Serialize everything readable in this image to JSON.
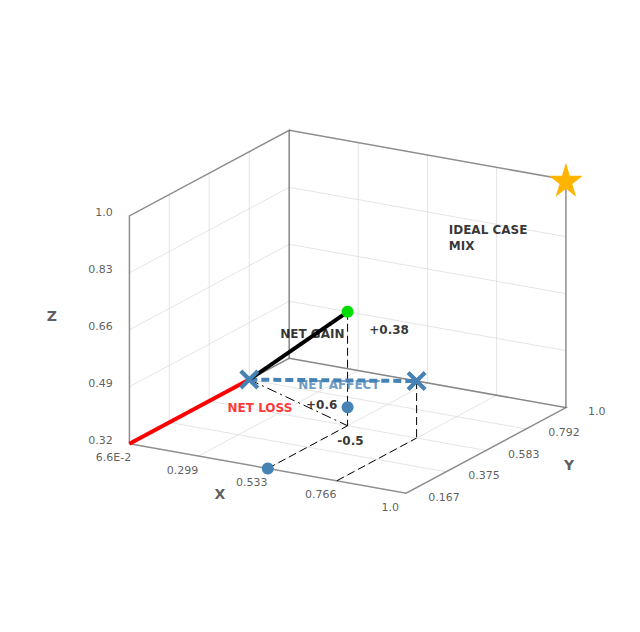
{
  "chart_data": {
    "type": "scatter3d",
    "x_label": "X",
    "y_label": "Y",
    "z_label": "Z",
    "xlim": [
      0.066,
      1.0
    ],
    "ylim": [
      0.167,
      1.0
    ],
    "zlim": [
      0.32,
      1.0
    ],
    "xticks": [
      {
        "value": 0.066,
        "label": "6.6E-2"
      },
      0.299,
      0.533,
      0.766,
      {
        "value": 1.0,
        "label": "1.0"
      }
    ],
    "yticks": [
      0.167,
      0.375,
      0.583,
      0.792,
      {
        "value": 1.0,
        "label": "1.0"
      }
    ],
    "zticks": [
      0.32,
      0.49,
      0.66,
      0.83,
      {
        "value": 1.0,
        "label": "1.0"
      }
    ],
    "grid": true,
    "series": [
      {
        "type": "line",
        "line_style": "dashed",
        "color": "#000000",
        "values": [
          [
            0.533,
            0.583,
            0.66
          ],
          [
            0.533,
            0.583,
            0.32
          ]
        ]
      },
      {
        "type": "line",
        "line_style": "dashed",
        "color": "#000000",
        "values": [
          [
            0.533,
            0.167,
            0.32
          ],
          [
            0.533,
            0.583,
            0.32
          ]
        ]
      },
      {
        "type": "line",
        "line_style": "dashed",
        "color": "#000000",
        "values": [
          [
            0.766,
            0.583,
            0.49
          ],
          [
            0.766,
            0.583,
            0.32
          ]
        ]
      },
      {
        "type": "line",
        "line_style": "dashed",
        "color": "#000000",
        "values": [
          [
            0.766,
            0.167,
            0.32
          ],
          [
            0.766,
            0.583,
            0.32
          ]
        ]
      },
      {
        "type": "line",
        "line_style": "dashdot",
        "color": "#000000",
        "values": [
          [
            0.066,
            0.792,
            0.32
          ],
          [
            0.533,
            0.583,
            0.32
          ]
        ]
      },
      {
        "type": "arrow",
        "line_style": "dashed",
        "color": "#4682b4",
        "values": [
          [
            0.066,
            0.792,
            0.32
          ],
          [
            0.766,
            0.583,
            0.49
          ]
        ]
      },
      {
        "type": "arrow",
        "line_style": "solid",
        "color": "#000000",
        "values": [
          [
            0.066,
            0.792,
            0.32
          ],
          [
            0.533,
            0.583,
            0.66
          ]
        ]
      },
      {
        "type": "arrow",
        "line_style": "solid",
        "color": "#ff0000",
        "values": [
          [
            0.066,
            0.792,
            0.32
          ],
          [
            0.066,
            0.167,
            0.32
          ]
        ]
      },
      {
        "type": "scatter",
        "marker": "star",
        "color": "#FFB500",
        "values": [
          [
            1.0,
            1.0,
            1.0
          ]
        ]
      },
      {
        "type": "scatter",
        "marker": "x",
        "color": "#4682b4",
        "values": [
          [
            0.066,
            0.792,
            0.32
          ],
          [
            0.766,
            0.583,
            0.49
          ]
        ]
      },
      {
        "type": "scatter",
        "marker": "circle",
        "color": "#00dd00",
        "values": [
          [
            0.533,
            0.583,
            0.66
          ]
        ]
      },
      {
        "type": "scatter",
        "marker": "circle",
        "color": "#4682b4",
        "values": [
          [
            0.533,
            0.583,
            0.375
          ],
          [
            0.533,
            0.167,
            0.32
          ]
        ]
      }
    ],
    "annotations": [
      {
        "text": "IDEAL CASE\nMIX",
        "x": 0.62,
        "y": 0.95,
        "z": 0.78,
        "color": "#000000"
      },
      {
        "text": "NET GAIN",
        "x": 0.2,
        "y": 0.72,
        "z": 0.5,
        "color": "#000000"
      },
      {
        "text": "NET LOSS",
        "x": 0.1,
        "y": 0.6,
        "z": 0.3,
        "color": "#ff0000"
      },
      {
        "text": "NET AFFECT",
        "x": 0.28,
        "y": 0.69,
        "z": 0.37,
        "color": "#4682b4"
      },
      {
        "text": "+0.38",
        "x": 0.583,
        "y": 0.593,
        "z": 0.61,
        "color": "#000000"
      },
      {
        "text": "+0.6",
        "x": 0.3,
        "y": 0.7,
        "z": 0.31,
        "color": "#000000"
      },
      {
        "text": "-0.5",
        "x": 0.6,
        "y": 0.4,
        "z": 0.34,
        "color": "#000000"
      }
    ]
  }
}
